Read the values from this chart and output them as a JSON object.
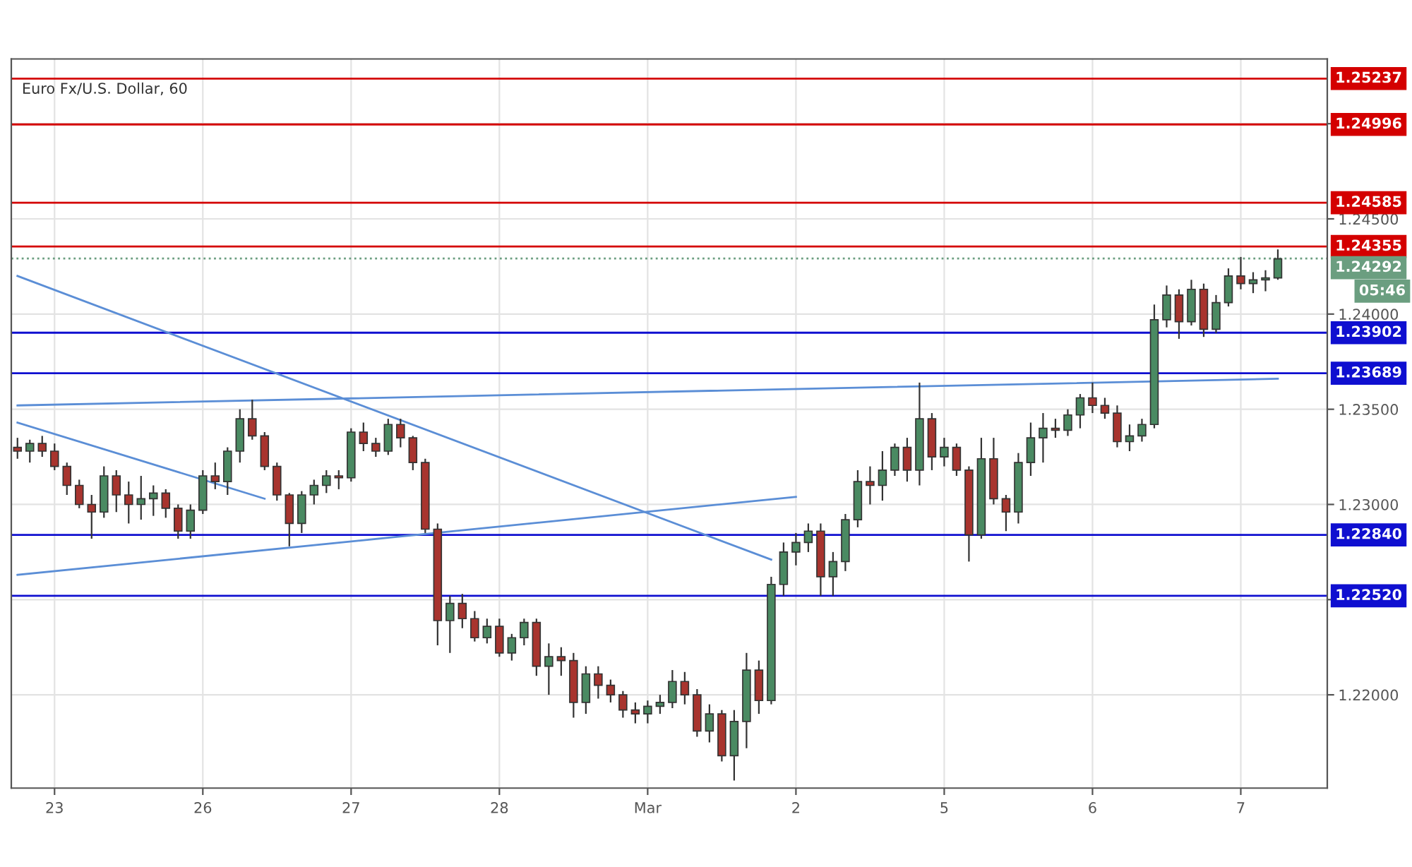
{
  "chart_data": {
    "type": "candlestick",
    "title": "Euro Fx/U.S. Dollar, 60",
    "categories": [
      null,
      null,
      null,
      "23",
      null,
      null,
      null,
      null,
      null,
      null,
      null,
      null,
      null,
      null,
      null,
      "26",
      null,
      null,
      null,
      null,
      null,
      null,
      null,
      null,
      null,
      null,
      null,
      "27",
      null,
      null,
      null,
      null,
      null,
      null,
      null,
      null,
      null,
      null,
      null,
      "28",
      null,
      null,
      null,
      null,
      null,
      null,
      null,
      null,
      null,
      null,
      null,
      "Mar",
      null,
      null,
      null,
      null,
      null,
      null,
      null,
      null,
      null,
      null,
      null,
      "2",
      null,
      null,
      null,
      null,
      null,
      null,
      null,
      null,
      null,
      null,
      null,
      "5",
      null,
      null,
      null,
      null,
      null,
      null,
      null,
      null,
      null,
      null,
      null,
      "6",
      null,
      null,
      null,
      null,
      null,
      null,
      null,
      null,
      null,
      null,
      null,
      "7",
      null,
      null,
      null
    ],
    "ohlc": [
      [
        1.233,
        1.2335,
        1.2324,
        1.2328
      ],
      [
        1.2328,
        1.2334,
        1.2322,
        1.2332
      ],
      [
        1.2332,
        1.2336,
        1.2325,
        1.2328
      ],
      [
        1.2328,
        1.2332,
        1.2318,
        1.232
      ],
      [
        1.232,
        1.2322,
        1.2305,
        1.231
      ],
      [
        1.231,
        1.2313,
        1.2298,
        1.23
      ],
      [
        1.23,
        1.2305,
        1.2282,
        1.2296
      ],
      [
        1.2296,
        1.232,
        1.2293,
        1.2315
      ],
      [
        1.2315,
        1.2318,
        1.2296,
        1.2305
      ],
      [
        1.2305,
        1.2312,
        1.229,
        1.23
      ],
      [
        1.23,
        1.2315,
        1.2292,
        1.2303
      ],
      [
        1.2303,
        1.231,
        1.2294,
        1.2306
      ],
      [
        1.2306,
        1.2308,
        1.2293,
        1.2298
      ],
      [
        1.2298,
        1.23,
        1.2282,
        1.2286
      ],
      [
        1.2286,
        1.23,
        1.2282,
        1.2297
      ],
      [
        1.2297,
        1.2318,
        1.2295,
        1.2315
      ],
      [
        1.2315,
        1.2322,
        1.2308,
        1.2312
      ],
      [
        1.2312,
        1.233,
        1.2305,
        1.2328
      ],
      [
        1.2328,
        1.235,
        1.2322,
        1.2345
      ],
      [
        1.2345,
        1.2355,
        1.2334,
        1.2336
      ],
      [
        1.2336,
        1.2338,
        1.2318,
        1.232
      ],
      [
        1.232,
        1.2322,
        1.2302,
        1.2305
      ],
      [
        1.2305,
        1.2306,
        1.2278,
        1.229
      ],
      [
        1.229,
        1.2307,
        1.2285,
        1.2305
      ],
      [
        1.2305,
        1.2313,
        1.23,
        1.231
      ],
      [
        1.231,
        1.2318,
        1.2306,
        1.2315
      ],
      [
        1.2315,
        1.2318,
        1.2308,
        1.2314
      ],
      [
        1.2314,
        1.234,
        1.2312,
        1.2338
      ],
      [
        1.2338,
        1.2343,
        1.2328,
        1.2332
      ],
      [
        1.2332,
        1.2335,
        1.2325,
        1.2328
      ],
      [
        1.2328,
        1.2345,
        1.2326,
        1.2342
      ],
      [
        1.2342,
        1.2345,
        1.233,
        1.2335
      ],
      [
        1.2335,
        1.2336,
        1.2318,
        1.2322
      ],
      [
        1.2322,
        1.2324,
        1.2285,
        1.2287
      ],
      [
        1.2287,
        1.229,
        1.2226,
        1.2239
      ],
      [
        1.2239,
        1.2252,
        1.2222,
        1.2248
      ],
      [
        1.2248,
        1.2253,
        1.2235,
        1.224
      ],
      [
        1.224,
        1.2244,
        1.2228,
        1.223
      ],
      [
        1.223,
        1.224,
        1.2227,
        1.2236
      ],
      [
        1.2236,
        1.224,
        1.222,
        1.2222
      ],
      [
        1.2222,
        1.2232,
        1.2218,
        1.223
      ],
      [
        1.223,
        1.224,
        1.2226,
        1.2238
      ],
      [
        1.2238,
        1.224,
        1.221,
        1.2215
      ],
      [
        1.2215,
        1.2227,
        1.22,
        1.222
      ],
      [
        1.222,
        1.2225,
        1.221,
        1.2218
      ],
      [
        1.2218,
        1.2222,
        1.2188,
        1.2196
      ],
      [
        1.2196,
        1.2215,
        1.219,
        1.2211
      ],
      [
        1.2211,
        1.2215,
        1.2198,
        1.2205
      ],
      [
        1.2205,
        1.2208,
        1.2196,
        1.22
      ],
      [
        1.22,
        1.2202,
        1.2188,
        1.2192
      ],
      [
        1.2192,
        1.2196,
        1.2185,
        1.219
      ],
      [
        1.219,
        1.2197,
        1.2185,
        1.2194
      ],
      [
        1.2194,
        1.22,
        1.219,
        1.2196
      ],
      [
        1.2196,
        1.2213,
        1.2193,
        1.2207
      ],
      [
        1.2207,
        1.2212,
        1.2195,
        1.22
      ],
      [
        1.22,
        1.2203,
        1.2178,
        1.2181
      ],
      [
        1.2181,
        1.2195,
        1.2175,
        1.219
      ],
      [
        1.219,
        1.2192,
        1.2165,
        1.2168
      ],
      [
        1.2168,
        1.2192,
        1.2155,
        1.2186
      ],
      [
        1.2186,
        1.2222,
        1.2172,
        1.2213
      ],
      [
        1.2213,
        1.2218,
        1.219,
        1.2197
      ],
      [
        1.2197,
        1.2262,
        1.2195,
        1.2258
      ],
      [
        1.2258,
        1.228,
        1.2252,
        1.2275
      ],
      [
        1.2275,
        1.2285,
        1.2268,
        1.228
      ],
      [
        1.228,
        1.229,
        1.2275,
        1.2286
      ],
      [
        1.2286,
        1.229,
        1.2252,
        1.2262
      ],
      [
        1.2262,
        1.2275,
        1.2252,
        1.227
      ],
      [
        1.227,
        1.2295,
        1.2265,
        1.2292
      ],
      [
        1.2292,
        1.2318,
        1.2288,
        1.2312
      ],
      [
        1.2312,
        1.232,
        1.23,
        1.231
      ],
      [
        1.231,
        1.2328,
        1.2302,
        1.2318
      ],
      [
        1.2318,
        1.2332,
        1.2315,
        1.233
      ],
      [
        1.233,
        1.2335,
        1.2312,
        1.2318
      ],
      [
        1.2318,
        1.2364,
        1.231,
        1.2345
      ],
      [
        1.2345,
        1.2348,
        1.2318,
        1.2325
      ],
      [
        1.2325,
        1.2335,
        1.232,
        1.233
      ],
      [
        1.233,
        1.2332,
        1.2315,
        1.2318
      ],
      [
        1.2318,
        1.232,
        1.227,
        1.2284
      ],
      [
        1.2284,
        1.2335,
        1.2282,
        1.2324
      ],
      [
        1.2324,
        1.2335,
        1.23,
        1.2303
      ],
      [
        1.2303,
        1.2305,
        1.2286,
        1.2296
      ],
      [
        1.2296,
        1.2327,
        1.229,
        1.2322
      ],
      [
        1.2322,
        1.2343,
        1.2315,
        1.2335
      ],
      [
        1.2335,
        1.2348,
        1.2322,
        1.234
      ],
      [
        1.234,
        1.2345,
        1.2335,
        1.2339
      ],
      [
        1.2339,
        1.235,
        1.2336,
        1.2347
      ],
      [
        1.2347,
        1.2358,
        1.234,
        1.2356
      ],
      [
        1.2356,
        1.2364,
        1.2348,
        1.2352
      ],
      [
        1.2352,
        1.2356,
        1.2345,
        1.2348
      ],
      [
        1.2348,
        1.2352,
        1.233,
        1.2333
      ],
      [
        1.2333,
        1.2342,
        1.2328,
        1.2336
      ],
      [
        1.2336,
        1.2345,
        1.2333,
        1.2342
      ],
      [
        1.2342,
        1.2405,
        1.234,
        1.2397
      ],
      [
        1.2397,
        1.2415,
        1.2393,
        1.241
      ],
      [
        1.241,
        1.2413,
        1.2387,
        1.2396
      ],
      [
        1.2396,
        1.2418,
        1.2394,
        1.2413
      ],
      [
        1.2413,
        1.2416,
        1.2388,
        1.2392
      ],
      [
        1.2392,
        1.241,
        1.239,
        1.2406
      ],
      [
        1.2406,
        1.2424,
        1.2404,
        1.242
      ],
      [
        1.242,
        1.243,
        1.2413,
        1.2416
      ],
      [
        1.2416,
        1.2422,
        1.2411,
        1.2418
      ],
      [
        1.2418,
        1.2423,
        1.2412,
        1.2419
      ],
      [
        1.2419,
        1.2434,
        1.2418,
        1.2429
      ]
    ],
    "colors": [
      "#a8342e",
      "#4a8a62",
      "#a8342e",
      "#a8342e",
      "#a8342e",
      "#a8342e",
      "#a8342e",
      "#4a8a62",
      "#a8342e",
      "#a8342e",
      "#4a8a62",
      "#4a8a62",
      "#a8342e",
      "#a8342e",
      "#4a8a62",
      "#4a8a62",
      "#a8342e",
      "#4a8a62",
      "#4a8a62",
      "#a8342e",
      "#a8342e",
      "#a8342e",
      "#a8342e",
      "#4a8a62",
      "#4a8a62",
      "#4a8a62",
      "#a8342e",
      "#4a8a62",
      "#a8342e",
      "#a8342e",
      "#4a8a62",
      "#a8342e",
      "#a8342e",
      "#a8342e",
      "#a8342e",
      "#4a8a62",
      "#a8342e",
      "#a8342e",
      "#4a8a62",
      "#a8342e",
      "#4a8a62",
      "#4a8a62",
      "#a8342e",
      "#4a8a62",
      "#a8342e",
      "#a8342e",
      "#4a8a62",
      "#a8342e",
      "#a8342e",
      "#a8342e",
      "#a8342e",
      "#4a8a62",
      "#4a8a62",
      "#4a8a62",
      "#a8342e",
      "#a8342e",
      "#4a8a62",
      "#a8342e",
      "#4a8a62",
      "#4a8a62",
      "#a8342e",
      "#4a8a62",
      "#4a8a62",
      "#4a8a62",
      "#4a8a62",
      "#a8342e",
      "#4a8a62",
      "#4a8a62",
      "#4a8a62",
      "#a8342e",
      "#4a8a62",
      "#4a8a62",
      "#a8342e",
      "#4a8a62",
      "#a8342e",
      "#4a8a62",
      "#a8342e",
      "#a8342e",
      "#4a8a62",
      "#a8342e",
      "#a8342e",
      "#4a8a62",
      "#4a8a62",
      "#4a8a62",
      "#a8342e",
      "#4a8a62",
      "#4a8a62",
      "#a8342e",
      "#a8342e",
      "#a8342e",
      "#4a8a62",
      "#4a8a62",
      "#4a8a62",
      "#4a8a62",
      "#a8342e",
      "#4a8a62",
      "#a8342e",
      "#4a8a62",
      "#4a8a62",
      "#a8342e",
      "#4a8a62",
      "#4a8a62",
      "#4a8a62"
    ],
    "series": [
      {
        "type": "line",
        "color": "#5b8ed6",
        "values": [
          1.242,
          null,
          null,
          null,
          null,
          null,
          null,
          null,
          null,
          null,
          null,
          null,
          null,
          null,
          null,
          null,
          null,
          null,
          null,
          null,
          null,
          null,
          null,
          null,
          null,
          null,
          null,
          null,
          null,
          null,
          null,
          null,
          null,
          null,
          null,
          null,
          null,
          null,
          null,
          null,
          null,
          null,
          null,
          null,
          null,
          null,
          null,
          null,
          null,
          null,
          null,
          null,
          null,
          null,
          null,
          null,
          null,
          null,
          null,
          null,
          null,
          1.2271,
          null,
          null,
          null,
          null,
          null,
          null,
          null,
          null,
          null,
          null,
          null,
          null,
          null,
          null,
          null,
          null,
          null,
          null,
          null,
          null,
          null,
          null,
          null,
          null,
          null,
          null,
          null,
          null,
          null,
          null,
          null,
          null,
          null,
          null,
          null,
          null,
          null,
          null,
          null,
          null,
          null
        ]
      },
      {
        "type": "line",
        "color": "#5b8ed6",
        "values": [
          1.2343,
          null,
          null,
          null,
          null,
          null,
          null,
          null,
          null,
          null,
          null,
          null,
          null,
          null,
          null,
          null,
          null,
          null,
          null,
          null,
          1.2303,
          null,
          null,
          null,
          null,
          null,
          null,
          null,
          null,
          null,
          null,
          null,
          null,
          null,
          null,
          null,
          null,
          null,
          null,
          null,
          null,
          null,
          null,
          null,
          null,
          null,
          null,
          null,
          null,
          null,
          null,
          null,
          null,
          null,
          null,
          null,
          null,
          null,
          null,
          null,
          null,
          null,
          null,
          null,
          null,
          null,
          null,
          null,
          null,
          null,
          null,
          null,
          null,
          null,
          null,
          null,
          null,
          null,
          null,
          null,
          null,
          null,
          null,
          null,
          null,
          null,
          null,
          null,
          null,
          null,
          null,
          null,
          null,
          null,
          null,
          null,
          null,
          null,
          null,
          null,
          null,
          null,
          null
        ]
      },
      {
        "type": "line",
        "color": "#5b8ed6",
        "values": [
          1.2263,
          null,
          null,
          null,
          null,
          null,
          null,
          null,
          null,
          null,
          null,
          null,
          null,
          null,
          null,
          null,
          null,
          null,
          null,
          null,
          null,
          null,
          null,
          null,
          null,
          null,
          null,
          null,
          null,
          null,
          null,
          null,
          null,
          null,
          null,
          null,
          null,
          null,
          null,
          null,
          null,
          null,
          null,
          null,
          null,
          null,
          null,
          null,
          null,
          null,
          null,
          null,
          null,
          null,
          null,
          null,
          null,
          null,
          null,
          null,
          null,
          null,
          null,
          1.2304,
          null,
          null,
          null,
          null,
          null,
          null,
          null,
          null,
          null,
          null,
          null,
          null,
          null,
          null,
          null,
          null,
          null,
          null,
          null,
          null,
          null,
          null,
          null,
          null,
          null,
          null,
          null,
          null,
          null,
          null,
          null,
          null,
          null,
          null,
          null,
          null,
          null,
          null,
          null
        ]
      },
      {
        "type": "line",
        "color": "#5b8ed6",
        "values": [
          1.2352,
          null,
          null,
          null,
          null,
          null,
          null,
          null,
          null,
          null,
          null,
          null,
          null,
          null,
          null,
          null,
          null,
          null,
          null,
          null,
          null,
          null,
          null,
          null,
          null,
          null,
          null,
          null,
          null,
          null,
          null,
          null,
          null,
          null,
          null,
          null,
          null,
          null,
          null,
          null,
          null,
          null,
          null,
          null,
          null,
          null,
          null,
          null,
          null,
          null,
          null,
          null,
          null,
          null,
          null,
          null,
          null,
          null,
          null,
          null,
          null,
          null,
          null,
          null,
          null,
          null,
          null,
          null,
          null,
          null,
          null,
          null,
          null,
          null,
          null,
          null,
          null,
          null,
          null,
          null,
          null,
          null,
          null,
          null,
          null,
          null,
          null,
          null,
          null,
          null,
          null,
          null,
          null,
          null,
          null,
          null,
          null,
          null,
          null,
          null,
          null,
          null,
          1.2366
        ]
      }
    ],
    "ylim": [
      1.2151,
      1.2534
    ],
    "yticks": [
      {
        "value": 1.22,
        "label": "1.22000"
      },
      {
        "value": 1.225,
        "label": null
      },
      {
        "value": 1.23,
        "label": "1.23000"
      },
      {
        "value": 1.235,
        "label": "1.23500"
      },
      {
        "value": 1.24,
        "label": "1.24000"
      },
      {
        "value": 1.245,
        "label": "1.24500"
      },
      {
        "value": 1.25,
        "label": null
      }
    ],
    "grid": true,
    "ref_lines": [
      {
        "axis": "y",
        "value": 1.25237,
        "label": "1.25237",
        "color": "#d40000"
      },
      {
        "axis": "y",
        "value": 1.24996,
        "label": "1.24996",
        "color": "#d40000"
      },
      {
        "axis": "y",
        "value": 1.24585,
        "label": "1.24585",
        "color": "#d40000"
      },
      {
        "axis": "y",
        "value": 1.24355,
        "label": "1.24355",
        "color": "#d40000"
      },
      {
        "axis": "y",
        "value": 1.24292,
        "label": "1.24292",
        "color": "#6b9e80",
        "line_style": "dotted"
      },
      {
        "axis": "y",
        "value": 1.23902,
        "label": "1.23902",
        "color": "#0f0fd0"
      },
      {
        "axis": "y",
        "value": 1.23689,
        "label": "1.23689",
        "color": "#0f0fd0"
      },
      {
        "axis": "y",
        "value": 1.2284,
        "label": "1.22840",
        "color": "#0f0fd0"
      },
      {
        "axis": "y",
        "value": 1.2252,
        "label": "1.22520",
        "color": "#0f0fd0"
      }
    ],
    "annotations": [
      "05:46"
    ]
  }
}
